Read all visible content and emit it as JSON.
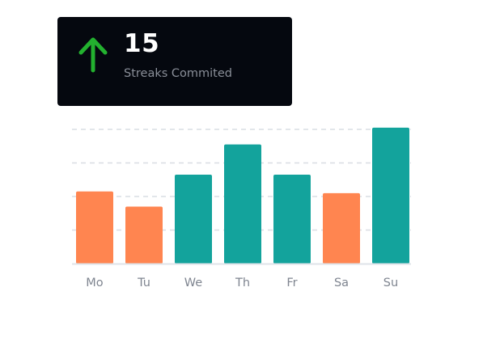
{
  "card": {
    "value": "15",
    "label": "Streaks Commited",
    "icon": "arrow-up-icon",
    "icon_color": "#23b12f",
    "background": "#05080f"
  },
  "chart_data": {
    "type": "bar",
    "categories": [
      "Mo",
      "Tu",
      "We",
      "Th",
      "Fr",
      "Sa",
      "Su"
    ],
    "values": [
      43,
      34,
      53,
      71,
      53,
      42,
      81
    ],
    "colors": [
      "#ff8550",
      "#ff8550",
      "#13a39c",
      "#13a39c",
      "#13a39c",
      "#ff8550",
      "#13a39c"
    ],
    "ylim": [
      0,
      80
    ],
    "grid": true,
    "title": "",
    "xlabel": "",
    "ylabel": ""
  }
}
